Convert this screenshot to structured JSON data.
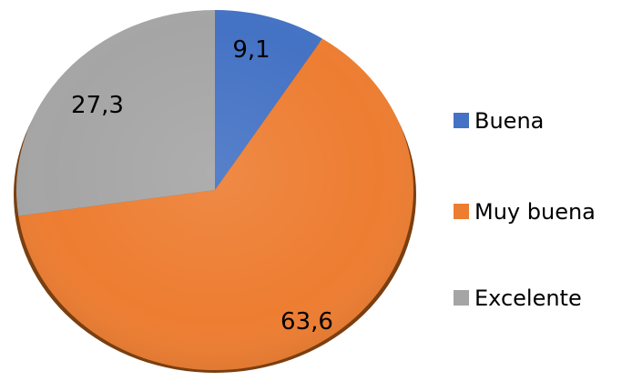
{
  "chart_data": {
    "type": "pie",
    "categories": [
      "Buena",
      "Muy buena",
      "Excelente"
    ],
    "values": [
      9.1,
      63.6,
      27.3
    ],
    "value_labels": [
      "9,1",
      "63,6",
      "27,3"
    ],
    "colors": [
      "#4472c4",
      "#ed7d31",
      "#a5a5a5"
    ],
    "start": "12 o'clock, clockwise",
    "legend_position": "right",
    "style": "3d-shadow"
  }
}
